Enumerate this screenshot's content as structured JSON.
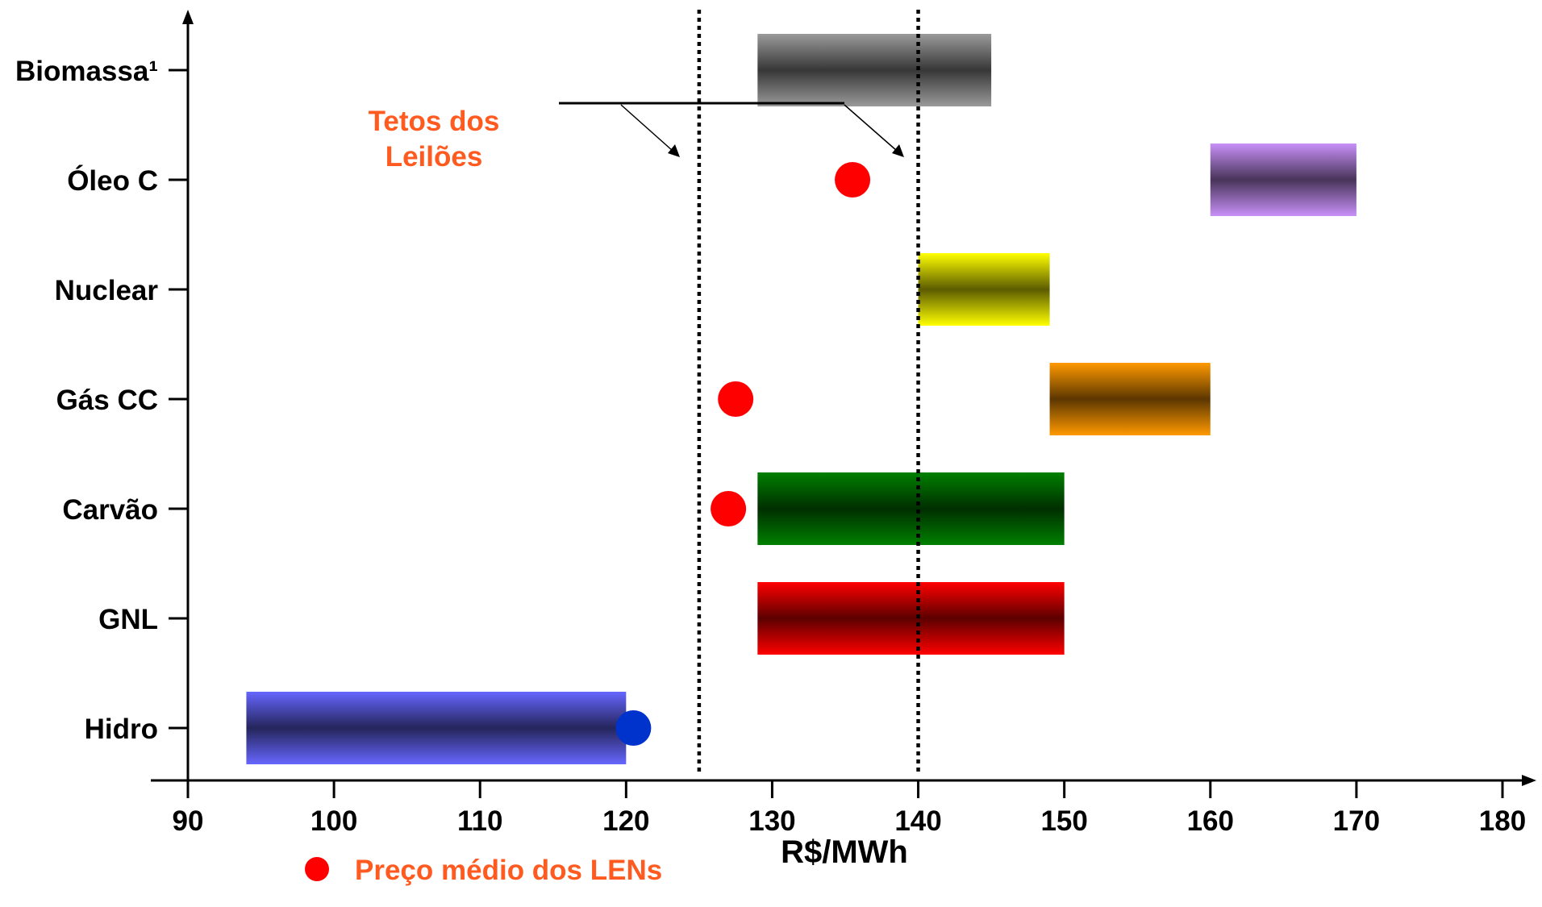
{
  "chart_data": {
    "type": "range-bar",
    "xlabel": "R$/MWh",
    "xlim": [
      90,
      180
    ],
    "xticks": [
      90,
      100,
      110,
      120,
      130,
      140,
      150,
      160,
      170,
      180
    ],
    "categories": [
      "Biomassa¹",
      "Óleo C",
      "Nuclear",
      "Gás CC",
      "Carvão",
      "GNL",
      "Hidro"
    ],
    "ranges": [
      {
        "category": "Biomassa¹",
        "min": 129,
        "max": 145,
        "color": "#9a9a9a"
      },
      {
        "category": "Óleo C",
        "min": 160,
        "max": 170,
        "color": "#c890f8"
      },
      {
        "category": "Nuclear",
        "min": 140,
        "max": 149,
        "color": "#ffff00"
      },
      {
        "category": "Gás CC",
        "min": 149,
        "max": 160,
        "color": "#ff9900"
      },
      {
        "category": "Carvão",
        "min": 129,
        "max": 150,
        "color": "#008000"
      },
      {
        "category": "GNL",
        "min": 129,
        "max": 150,
        "color": "#ff0000"
      },
      {
        "category": "Hidro",
        "min": 94,
        "max": 120,
        "color": "#6666ff"
      }
    ],
    "points": [
      {
        "category": "Óleo C",
        "value": 135.5,
        "color": "#ff0000"
      },
      {
        "category": "Gás CC",
        "value": 127.5,
        "color": "#ff0000"
      },
      {
        "category": "Carvão",
        "value": 127,
        "color": "#ff0000"
      },
      {
        "category": "Hidro",
        "value": 120.5,
        "color": "#0033cc"
      }
    ],
    "reference_lines": [
      125,
      140
    ],
    "annotation": {
      "line1": "Tetos dos",
      "line2": "Leilões",
      "color": "#ff5a1f"
    },
    "legend": {
      "marker_color": "#ff0000",
      "label": "Preço médio dos LENs",
      "text_color": "#ff5a1f"
    }
  }
}
